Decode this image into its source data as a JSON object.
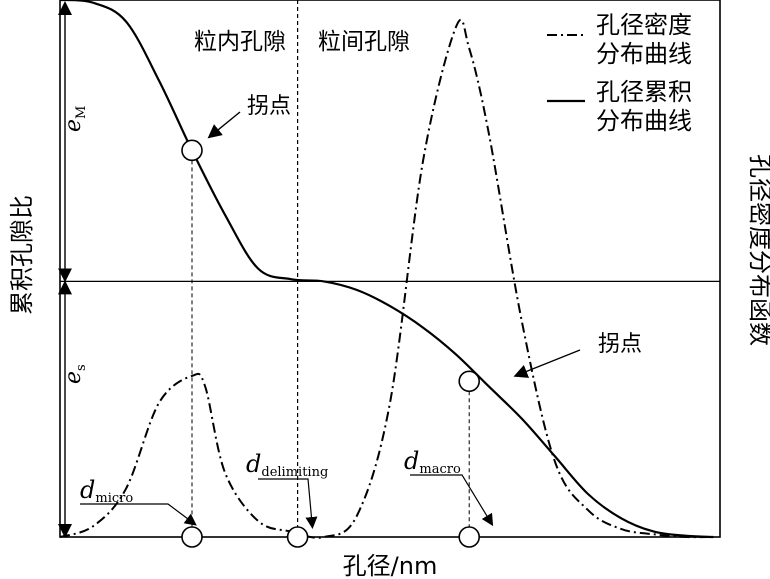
{
  "chart_data": {
    "type": "line",
    "xlabel": "孔径/nm",
    "ylabel_left": "累积孔隙比",
    "ylabel_right": "孔径密度分布函数",
    "regions": {
      "left": "粒内孔隙",
      "right": "粒间孔隙"
    },
    "legend": {
      "placement": "top-right",
      "entries": [
        {
          "name_line1": "孔径密度",
          "name_line2": "分布曲线",
          "style": "dash-dot"
        },
        {
          "name_line1": "孔径累积",
          "name_line2": "分布曲线",
          "style": "solid"
        }
      ]
    },
    "annotations": {
      "inflection_upper": "拐点",
      "inflection_lower": "拐点",
      "e_M": {
        "base": "e",
        "sub": "M"
      },
      "e_s": {
        "base": "e",
        "sub": "s"
      },
      "d_micro": {
        "base": "d",
        "sub": "micro"
      },
      "d_delimiting": {
        "base": "d",
        "sub": "delimiting"
      },
      "d_macro": {
        "base": "d",
        "sub": "macro"
      }
    },
    "xlim": [
      0,
      1
    ],
    "ylim": [
      0,
      1
    ],
    "series": [
      {
        "key": "cumulative",
        "style": "solid",
        "x": [
          0.0,
          0.05,
          0.1,
          0.15,
          0.2,
          0.25,
          0.3,
          0.35,
          0.4,
          0.45,
          0.5,
          0.55,
          0.6,
          0.65,
          0.7,
          0.75,
          0.8,
          0.85,
          0.9,
          0.95,
          0.99
        ],
        "y": [
          1.0,
          0.995,
          0.96,
          0.85,
          0.72,
          0.6,
          0.5,
          0.48,
          0.476,
          0.46,
          0.43,
          0.39,
          0.34,
          0.28,
          0.22,
          0.15,
          0.08,
          0.035,
          0.01,
          0.002,
          0.0
        ]
      },
      {
        "key": "density",
        "style": "dash-dot",
        "x": [
          0.0,
          0.05,
          0.1,
          0.15,
          0.2,
          0.22,
          0.25,
          0.3,
          0.35,
          0.4,
          0.45,
          0.5,
          0.55,
          0.6,
          0.62,
          0.65,
          0.7,
          0.75,
          0.8,
          0.85,
          0.9,
          0.95,
          0.99
        ],
        "y": [
          0.0,
          0.02,
          0.09,
          0.25,
          0.3,
          0.28,
          0.12,
          0.03,
          0.01,
          0.0,
          0.04,
          0.25,
          0.7,
          0.95,
          0.91,
          0.75,
          0.4,
          0.14,
          0.05,
          0.015,
          0.005,
          0.0,
          0.0
        ]
      }
    ],
    "markers": {
      "inflection_upper": {
        "x": 0.2,
        "y": 0.72
      },
      "inflection_lower": {
        "x": 0.62,
        "y": 0.29
      },
      "d_micro": {
        "x": 0.2,
        "y": 0.0
      },
      "d_delimiting": {
        "x": 0.36,
        "y": 0.0
      },
      "d_macro": {
        "x": 0.62,
        "y": 0.0
      }
    },
    "divider_y": 0.476,
    "delimiting_x": 0.36
  }
}
